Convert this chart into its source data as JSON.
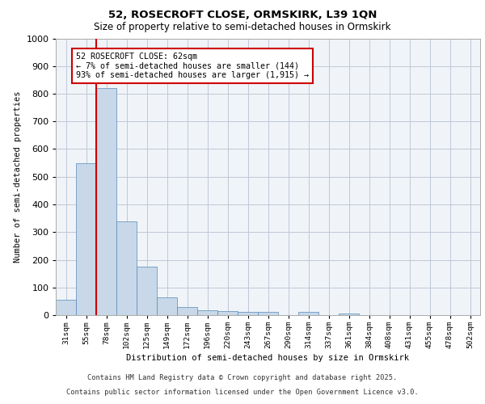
{
  "title1": "52, ROSECROFT CLOSE, ORMSKIRK, L39 1QN",
  "title2": "Size of property relative to semi-detached houses in Ormskirk",
  "xlabel": "Distribution of semi-detached houses by size in Ormskirk",
  "ylabel": "Number of semi-detached properties",
  "categories": [
    "31sqm",
    "55sqm",
    "78sqm",
    "102sqm",
    "125sqm",
    "149sqm",
    "172sqm",
    "196sqm",
    "220sqm",
    "243sqm",
    "267sqm",
    "290sqm",
    "314sqm",
    "337sqm",
    "361sqm",
    "384sqm",
    "408sqm",
    "431sqm",
    "455sqm",
    "478sqm",
    "502sqm"
  ],
  "values": [
    55,
    550,
    820,
    340,
    175,
    65,
    30,
    18,
    15,
    12,
    12,
    0,
    12,
    0,
    5,
    0,
    0,
    0,
    0,
    0,
    0
  ],
  "bar_color": "#c8d8e8",
  "bar_edge_color": "#5588bb",
  "vline_x_idx": 1,
  "vline_color": "#cc0000",
  "annotation_text": "52 ROSECROFT CLOSE: 62sqm\n← 7% of semi-detached houses are smaller (144)\n93% of semi-detached houses are larger (1,915) →",
  "annotation_box_color": "#ffffff",
  "annotation_box_edge": "#cc0000",
  "ylim": [
    0,
    1000
  ],
  "yticks": [
    0,
    100,
    200,
    300,
    400,
    500,
    600,
    700,
    800,
    900,
    1000
  ],
  "footer1": "Contains HM Land Registry data © Crown copyright and database right 2025.",
  "footer2": "Contains public sector information licensed under the Open Government Licence v3.0.",
  "bg_color": "#f0f4f8",
  "grid_color": "#c0c8d8"
}
